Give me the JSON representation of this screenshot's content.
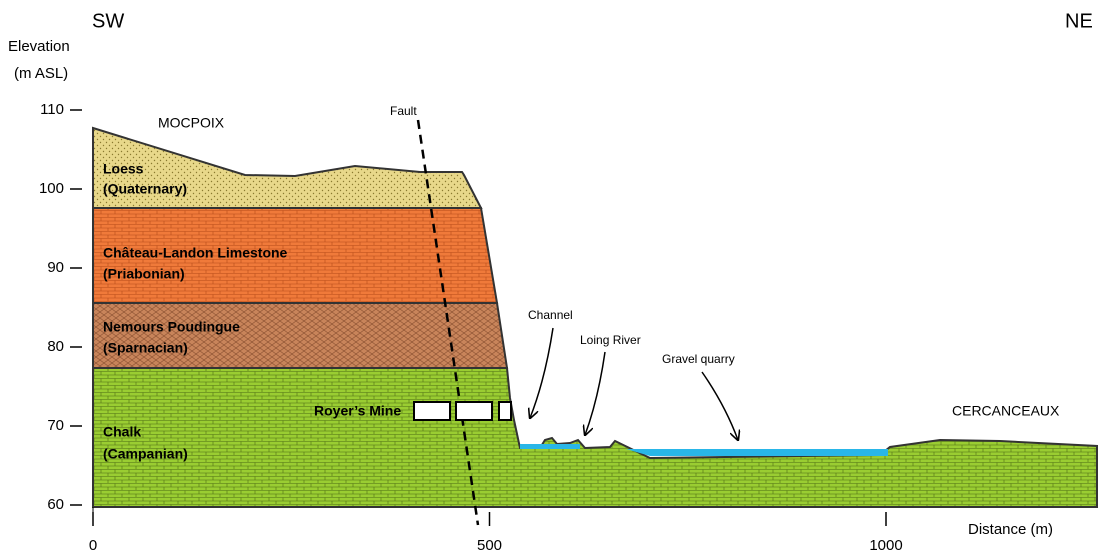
{
  "directions": {
    "left": "SW",
    "right": "NE"
  },
  "y_axis": {
    "label": [
      "Elevation",
      "(m ASL)"
    ],
    "ticks": [
      110,
      100,
      90,
      80,
      70,
      60
    ]
  },
  "x_axis": {
    "label": "Distance (m)",
    "ticks": [
      0,
      500,
      1000
    ]
  },
  "places": {
    "left": "MOCPOIX",
    "right": "CERCANCEAUX"
  },
  "layers": [
    {
      "name": "Loess",
      "age": "(Quaternary)"
    },
    {
      "name": "Château-Landon Limestone",
      "age": "(Priabonian)"
    },
    {
      "name": "Nemours Poudingue",
      "age": "(Sparnacian)"
    },
    {
      "name": "Chalk",
      "age": "(Campanian)"
    }
  ],
  "annotations": {
    "fault": "Fault",
    "mine": "Royer’s Mine",
    "channel": "Channel",
    "river": "Loing River",
    "quarry": "Gravel quarry"
  }
}
